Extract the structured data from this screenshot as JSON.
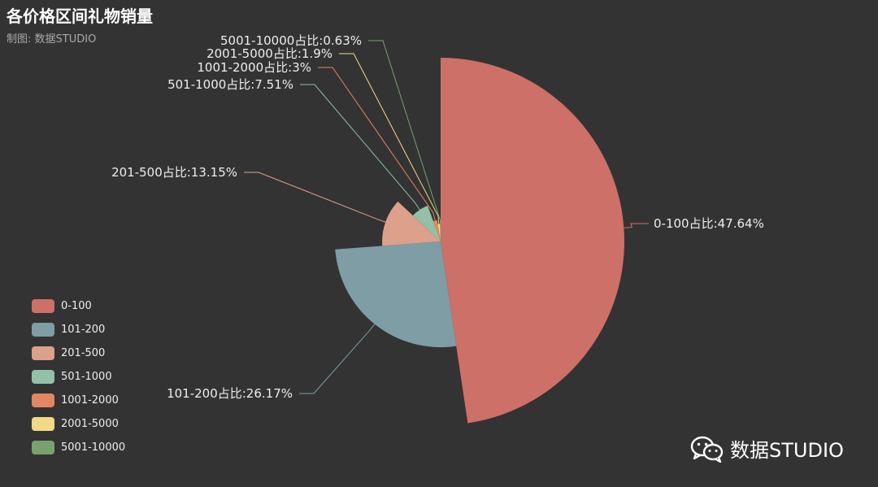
{
  "title": "各价格区间礼物销量",
  "subtitle": "制图: 数据STUDIO",
  "watermark": "数据STUDIO",
  "chart_data": {
    "type": "pie",
    "rose_type": "radius",
    "title": "各价格区间礼物销量",
    "categories": [
      "0-100",
      "101-200",
      "201-500",
      "501-1000",
      "1001-2000",
      "2001-5000",
      "5001-10000"
    ],
    "values": [
      47.64,
      26.17,
      13.15,
      7.51,
      3,
      1.9,
      0.63
    ],
    "labels": [
      "0-100占比:47.64%",
      "101-200占比:26.17%",
      "201-500占比:13.15%",
      "501-1000占比:7.51%",
      "1001-2000占比:3%",
      "2001-5000占比:1.9%",
      "5001-10000占比:0.63%"
    ],
    "colors": [
      "#cd7067",
      "#7f9da4",
      "#dca08b",
      "#93c0a6",
      "#e28762",
      "#f3d985",
      "#79a16d"
    ],
    "legend_position": "bottom-left"
  }
}
